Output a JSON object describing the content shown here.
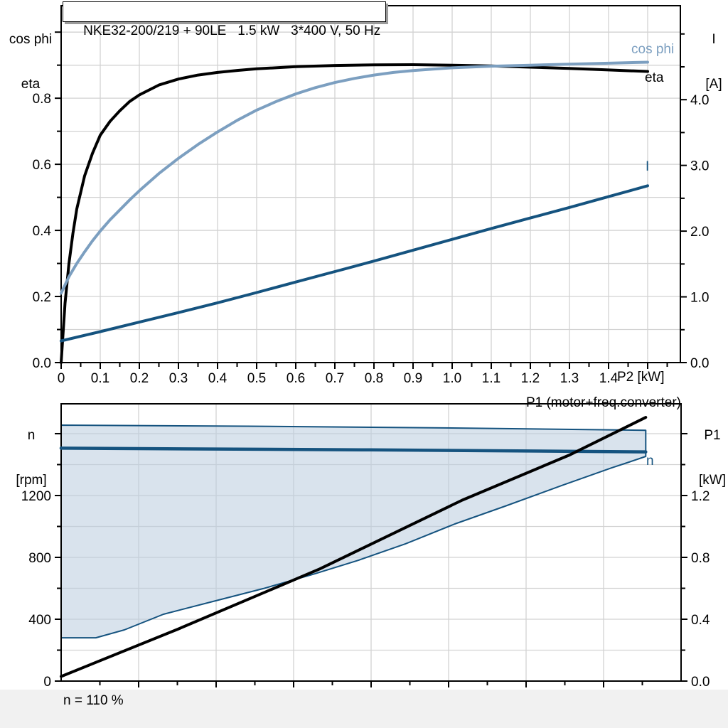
{
  "colors": {
    "grid": "#d2d2d2",
    "frame": "#000000",
    "dark_blue": "#15537f",
    "light_blue": "#7c9fc0",
    "band_fill": "#b9ccdf",
    "footer_bg": "#f1f1f1",
    "text": "#000000"
  },
  "chart_data": [
    {
      "type": "line",
      "title": "NKE32-200/219 + 90LE   1.5 kW   3*400 V, 50 Hz",
      "x_axis": {
        "label": "P2 [kW]",
        "min": 0,
        "max": 1.58,
        "tick_values": [
          0,
          0.1,
          0.2,
          0.3,
          0.4,
          0.5,
          0.6,
          0.7,
          0.8,
          0.9,
          1.0,
          1.1,
          1.2,
          1.3,
          1.4
        ],
        "tick_labels": [
          "0",
          "0.1",
          "0.2",
          "0.3",
          "0.4",
          "0.5",
          "0.6",
          "0.7",
          "0.8",
          "0.9",
          "1.0",
          "1.1",
          "1.2",
          "1.3",
          "1.4"
        ],
        "extra_tick_values": [
          1.5
        ],
        "minor_step": 0.05,
        "grid_step": 0.1,
        "grid_max": 1.5
      },
      "left_axis": {
        "title1": "cos phi",
        "title2": "eta",
        "min": 0,
        "max": 1.08,
        "tick_values": [
          0,
          0.2,
          0.4,
          0.6,
          0.8
        ],
        "tick_labels": [
          "0.0",
          "0.2",
          "0.4",
          "0.6",
          "0.8"
        ],
        "extra_tick_values": [
          1.0
        ],
        "minor_step": 0.1,
        "grid_step": 0.1,
        "grid_max": 1.0
      },
      "right_axis": {
        "title1": "I",
        "title2": "[A]",
        "min": 0,
        "max": 5.43,
        "tick_values": [
          0,
          1,
          2,
          3,
          4
        ],
        "tick_labels": [
          "0.0",
          "1.0",
          "2.0",
          "3.0",
          "4.0"
        ],
        "extra_tick_values": [],
        "minor_step": 0.5
      },
      "series": [
        {
          "name": "eta",
          "label": "eta",
          "axis": "left",
          "color": "#000000",
          "width": 4,
          "points": [
            [
              0,
              0
            ],
            [
              0.01,
              0.18
            ],
            [
              0.02,
              0.3
            ],
            [
              0.03,
              0.39
            ],
            [
              0.04,
              0.465
            ],
            [
              0.06,
              0.565
            ],
            [
              0.08,
              0.633
            ],
            [
              0.1,
              0.688
            ],
            [
              0.125,
              0.73
            ],
            [
              0.15,
              0.762
            ],
            [
              0.175,
              0.79
            ],
            [
              0.2,
              0.81
            ],
            [
              0.25,
              0.84
            ],
            [
              0.3,
              0.858
            ],
            [
              0.35,
              0.87
            ],
            [
              0.4,
              0.878
            ],
            [
              0.45,
              0.884
            ],
            [
              0.5,
              0.889
            ],
            [
              0.6,
              0.8955
            ],
            [
              0.7,
              0.899
            ],
            [
              0.8,
              0.901
            ],
            [
              0.9,
              0.9015
            ],
            [
              1.0,
              0.9
            ],
            [
              1.1,
              0.8975
            ],
            [
              1.2,
              0.894
            ],
            [
              1.3,
              0.89
            ],
            [
              1.4,
              0.8855
            ],
            [
              1.5,
              0.881
            ]
          ]
        },
        {
          "name": "cos phi",
          "label": "cos phi",
          "axis": "left",
          "color": "#7c9fc0",
          "width": 4,
          "points": [
            [
              0,
              0.21
            ],
            [
              0.02,
              0.26
            ],
            [
              0.04,
              0.3
            ],
            [
              0.06,
              0.335
            ],
            [
              0.08,
              0.368
            ],
            [
              0.1,
              0.398
            ],
            [
              0.125,
              0.432
            ],
            [
              0.15,
              0.462
            ],
            [
              0.175,
              0.492
            ],
            [
              0.2,
              0.52
            ],
            [
              0.25,
              0.572
            ],
            [
              0.3,
              0.618
            ],
            [
              0.35,
              0.66
            ],
            [
              0.4,
              0.698
            ],
            [
              0.45,
              0.733
            ],
            [
              0.5,
              0.764
            ],
            [
              0.55,
              0.79
            ],
            [
              0.6,
              0.813
            ],
            [
              0.65,
              0.832
            ],
            [
              0.7,
              0.8475
            ],
            [
              0.75,
              0.86
            ],
            [
              0.8,
              0.87
            ],
            [
              0.85,
              0.878
            ],
            [
              0.9,
              0.8835
            ],
            [
              0.95,
              0.888
            ],
            [
              1.0,
              0.892
            ],
            [
              1.1,
              0.897
            ],
            [
              1.2,
              0.9
            ],
            [
              1.3,
              0.903
            ],
            [
              1.4,
              0.906
            ],
            [
              1.5,
              0.909
            ]
          ]
        },
        {
          "name": "I",
          "label": "I",
          "axis": "right",
          "color": "#15537f",
          "width": 4,
          "points": [
            [
              0,
              0.33
            ],
            [
              0.1,
              0.47
            ],
            [
              0.2,
              0.615
            ],
            [
              0.3,
              0.76
            ],
            [
              0.4,
              0.91
            ],
            [
              0.5,
              1.065
            ],
            [
              0.6,
              1.225
            ],
            [
              0.7,
              1.385
            ],
            [
              0.8,
              1.545
            ],
            [
              0.9,
              1.71
            ],
            [
              1.0,
              1.875
            ],
            [
              1.1,
              2.04
            ],
            [
              1.2,
              2.2
            ],
            [
              1.3,
              2.36
            ],
            [
              1.4,
              2.525
            ],
            [
              1.5,
              2.69
            ]
          ]
        }
      ]
    },
    {
      "type": "line-band",
      "x_axis": {
        "label": "",
        "min": 0,
        "max": 1,
        "grid_step": 0.125,
        "minor_step": 0.0625
      },
      "left_axis": {
        "title1": "n",
        "title2": "[rpm]",
        "min": 0,
        "max": 1793,
        "tick_values": [
          0,
          400,
          800,
          1200
        ],
        "tick_labels": [
          "0",
          "400",
          "800",
          "1200"
        ],
        "extra_tick_values": [
          1600
        ],
        "minor_step": 200,
        "grid_step": 200,
        "grid_max": 1600
      },
      "right_axis": {
        "title1": "P1",
        "title2": "[kW]",
        "min": 0,
        "max": 1.793,
        "tick_values": [
          0,
          0.4,
          0.8,
          1.2
        ],
        "tick_labels": [
          "0.0",
          "0.4",
          "0.8",
          "1.2"
        ],
        "extra_tick_values": [
          1.6
        ],
        "minor_step": 0.2
      },
      "band": {
        "name": "speed-operating-range",
        "fill": "#b9ccdf",
        "fill_opacity": 0.55,
        "outline": "#15537f",
        "upper_rpm": [
          [
            0,
            1655
          ],
          [
            0.3,
            1648
          ],
          [
            0.6,
            1638
          ],
          [
            0.943,
            1622
          ]
        ],
        "lower_rpm": [
          [
            0,
            280
          ],
          [
            0.056,
            280
          ],
          [
            0.102,
            331
          ],
          [
            0.165,
            432
          ],
          [
            0.245,
            515
          ],
          [
            0.326,
            598
          ],
          [
            0.406,
            690
          ],
          [
            0.48,
            782
          ],
          [
            0.555,
            887
          ],
          [
            0.635,
            1016
          ],
          [
            0.716,
            1131
          ],
          [
            0.807,
            1264
          ],
          [
            0.888,
            1379
          ],
          [
            0.916,
            1416
          ],
          [
            0.943,
            1453
          ]
        ]
      },
      "series": [
        {
          "name": "n",
          "label": "n",
          "axis": "left",
          "color": "#15537f",
          "width": 4.5,
          "points": [
            [
              0,
              1506
            ],
            [
              0.5,
              1495
            ],
            [
              0.943,
              1482
            ]
          ]
        },
        {
          "name": "P1",
          "label": "P1 (motor+freq.converter)",
          "axis": "right",
          "color": "#000000",
          "width": 4,
          "points": [
            [
              0,
              0.03
            ],
            [
              0.188,
              0.335
            ],
            [
              0.417,
              0.725
            ],
            [
              0.647,
              1.17
            ],
            [
              0.819,
              1.46
            ],
            [
              0.943,
              1.705
            ]
          ]
        }
      ],
      "footer": "n = 110 %"
    }
  ]
}
